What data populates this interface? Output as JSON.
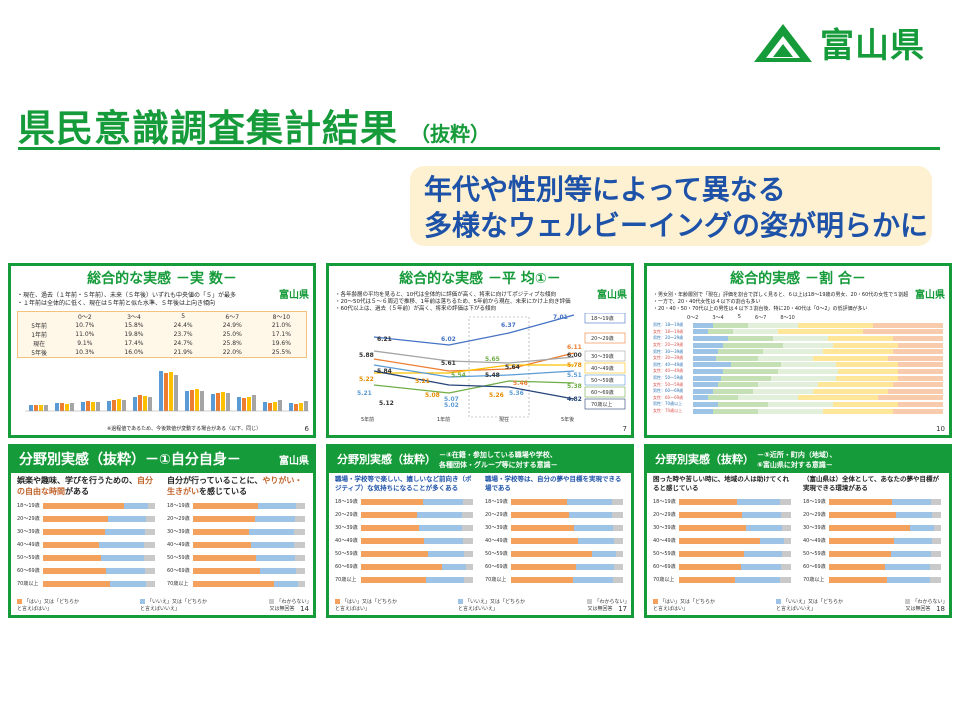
{
  "logo": {
    "text": "富山県",
    "mark_color": "#169b3a"
  },
  "title": {
    "main": "県民意識調査集計結果",
    "sub": "（抜粋）",
    "color": "#169b3a"
  },
  "callout": {
    "line1": "年代や性別等によって異なる",
    "line2": "多様なウェルビーイングの姿が明らかに",
    "color": "#1d52a8"
  },
  "cards": [
    {
      "title": "総合的な実感 －実 数－",
      "logo": "富山県",
      "text1": "・現在、過去（１年前・５年前）、未来（５年後）いずれも中央値の「５」が最多",
      "text2": "・１年前は全体的に低く、現在は５年前と似た水準、５年後は上向き傾向",
      "table_head": [
        "",
        "0～2",
        "3～4",
        "5",
        "6～7",
        "8～10"
      ],
      "table_rows": [
        [
          "5年前",
          "10.7%",
          "15.8%",
          "24.4%",
          "24.9%",
          "21.0%"
        ],
        [
          "1年前",
          "11.0%",
          "19.8%",
          "23.7%",
          "25.0%",
          "17.1%"
        ],
        [
          "現在",
          "9.1%",
          "17.4%",
          "24.7%",
          "25.8%",
          "19.6%"
        ],
        [
          "5年後",
          "10.3%",
          "16.0%",
          "21.9%",
          "22.0%",
          "25.5%"
        ]
      ],
      "footnote": "※過程値であるため、今後数値が変動する場合がある（以下、同じ）",
      "page": "6"
    },
    {
      "title": "総合的な実感 －平 均①－",
      "logo": "富山県",
      "text1": "・各年齢層の平均を見ると、10代は全体的に評価が高く、将来に向けてポジティブな傾向",
      "text2": "・20～50代は５～６周辺で推移、1年前は落ちるため、5年前から現在、未来にかけ上向き評価",
      "text3": "・60代以上は、過去（５年前）が高く、将来の評価は下がる傾向",
      "x_labels": [
        "5年前",
        "1年前",
        "現在",
        "5年後"
      ],
      "series_labels": [
        "18～19歳",
        "20～29歳",
        "30～39歳",
        "40～49歳",
        "50～59歳",
        "60～69歳",
        "70歳以上"
      ],
      "value_labels": [
        "6.21",
        "5.88",
        "5.84",
        "5.22",
        "5.21",
        "5.12",
        "6.02",
        "5.61",
        "5.54",
        "5.21",
        "5.08",
        "5.02",
        "5.07",
        "6.37",
        "5.65",
        "5.64",
        "5.48",
        "5.46",
        "5.26",
        "5.36",
        "7.01",
        "6.11",
        "6.00",
        "5.78",
        "5.51",
        "5.38",
        "4.82"
      ],
      "page": "7"
    },
    {
      "title": "総合的実感 －割 合－",
      "logo": "富山県",
      "text1": "・男女別・年齢層別で「現在」評価を割合で詳しく見ると、６以上は18～19歳の男女、20・60代の女性で５割超",
      "text2": "・一方で、20・40代女性は４以下の割合も多い",
      "text3": "・20・40・50・70代以上の男性は４以下３割台後、特に20・40代は「0～2」の低評価が多い",
      "legend": [
        "0～2",
        "3～4",
        "5",
        "6～7",
        "8～10"
      ],
      "rows": [
        "男性：18～19歳",
        "女性：18～19歳",
        "男性：20～29歳",
        "女性：20～29歳",
        "男性：30～39歳",
        "女性：30～39歳",
        "男性：40～49歳",
        "女性：40～49歳",
        "男性：50～59歳",
        "女性：50～59歳",
        "男性：60～69歳",
        "女性：60～69歳",
        "男性：70歳以上",
        "女性：70歳以上"
      ],
      "page": "10"
    },
    {
      "title": "分野別実感（抜粋）－①自分自身－",
      "logo": "富山県",
      "q1_pre": "娯楽や趣味、学びを行うための、",
      "q1_hl": "自分の自由な時間",
      "q1_post": "がある",
      "q2_pre": "自分が行っていることに、",
      "q2_hl": "やりがい・生きがい",
      "q2_post": "を感じている",
      "ages": [
        "18～19歳",
        "20～29歳",
        "30～39歳",
        "40～49歳",
        "50～59歳",
        "60～69歳",
        "70歳以上"
      ],
      "legend": [
        "「はい」又は「どちらかと言えばはい」",
        "「いいえ」又は「どちらかと言えばいいえ」",
        "「わからない」又は無回答"
      ],
      "page": "14"
    },
    {
      "title": "分野別実感（抜粋）－④在籍・参加している職場や学校、各種団体・グループ等に対する意識－",
      "title_a": "分野別実感（抜粋）",
      "title_b": "－④在籍・参加している職場や学校、",
      "title_c": "各種団体・グループ等に対する意識－",
      "logo": "富山県",
      "q1": "職場・学校等で楽しい、嬉しいなど前向き（ポジティブ）な気持ちになることが多くある",
      "q2": "職場・学校等は、自分の夢や目標を実現できる場である",
      "ages": [
        "18～19歳",
        "20～29歳",
        "30～39歳",
        "40～49歳",
        "50～59歳",
        "60～69歳",
        "70歳以上"
      ],
      "legend": [
        "「はい」又は「どちらかと言えばはい」",
        "「いいえ」又は「どちらかと言えばいいえ」",
        "「わからない」又は無回答"
      ],
      "page": "17"
    },
    {
      "title_a": "分野別実感（抜粋）",
      "title_b": "－⑤近所・町内（地域）、",
      "title_c": "⑥富山県に対する意識－",
      "logo": "富山県",
      "q1": "困った時や苦しい時に、地域の人は助けてくれると感じている",
      "q2": "（富山県は）全体として、あなたの夢や目標が実現できる環境がある",
      "ages": [
        "18～19歳",
        "20～29歳",
        "30～39歳",
        "40～49歳",
        "50～59歳",
        "60～69歳",
        "70歳以上"
      ],
      "legend": [
        "「はい」又は「どちらかと言えばはい」",
        "「いいえ」又は「どちらかと言えばいいえ」",
        "「わからない」又は無回答"
      ],
      "page": "18"
    }
  ]
}
